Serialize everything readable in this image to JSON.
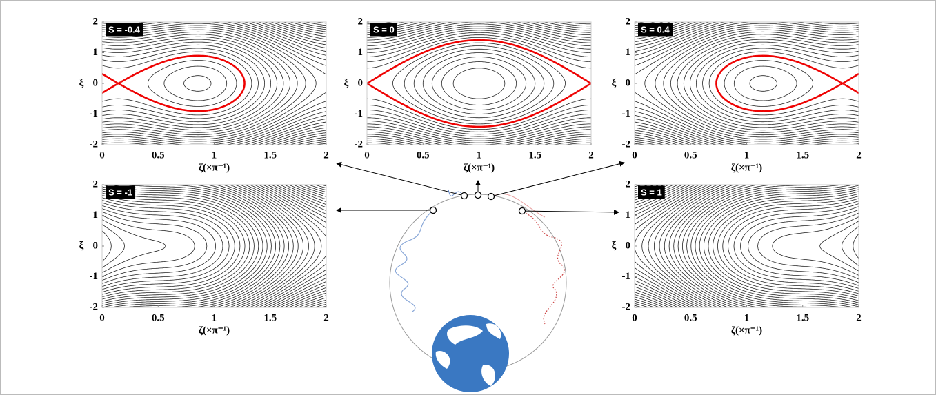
{
  "chart_data": [
    {
      "type": "contour",
      "parameter": {
        "value": -0.4,
        "label": "S = -0.4"
      },
      "xlabel": "ζ(×π⁻¹)",
      "ylabel": "ξ",
      "xlim": [
        0,
        2
      ],
      "ylim": [
        -2,
        2
      ],
      "xticks": [
        0,
        0.5,
        1,
        1.5,
        2
      ],
      "yticks": [
        -2,
        -1,
        0,
        1,
        2
      ]
    },
    {
      "type": "contour",
      "parameter": {
        "value": 0,
        "label": "S = 0"
      },
      "xlabel": "ζ(×π⁻¹)",
      "ylabel": "ξ",
      "xlim": [
        0,
        2
      ],
      "ylim": [
        -2,
        2
      ],
      "xticks": [
        0,
        0.5,
        1,
        1.5,
        2
      ],
      "yticks": [
        -2,
        -1,
        0,
        1,
        2
      ]
    },
    {
      "type": "contour",
      "parameter": {
        "value": 0.4,
        "label": "S = 0.4"
      },
      "xlabel": "ζ(×π⁻¹)",
      "ylabel": "ξ",
      "xlim": [
        0,
        2
      ],
      "ylim": [
        -2,
        2
      ],
      "xticks": [
        0,
        0.5,
        1,
        1.5,
        2
      ],
      "yticks": [
        -2,
        -1,
        0,
        1,
        2
      ]
    },
    {
      "type": "contour",
      "parameter": {
        "value": -1,
        "label": "S = -1"
      },
      "xlabel": "ζ(×π⁻¹)",
      "ylabel": "ξ",
      "xlim": [
        0,
        2
      ],
      "ylim": [
        -2,
        2
      ],
      "xticks": [
        0,
        0.5,
        1,
        1.5,
        2
      ],
      "yticks": [
        -2,
        -1,
        0,
        1,
        2
      ]
    },
    {
      "type": "contour",
      "parameter": {
        "value": 1,
        "label": "S = 1"
      },
      "xlabel": "ζ(×π⁻¹)",
      "ylabel": "ξ",
      "xlim": [
        0,
        2
      ],
      "ylim": [
        -2,
        2
      ],
      "xticks": [
        0,
        0.5,
        1,
        1.5,
        2
      ],
      "yticks": [
        -2,
        -1,
        0,
        1,
        2
      ]
    }
  ]
}
